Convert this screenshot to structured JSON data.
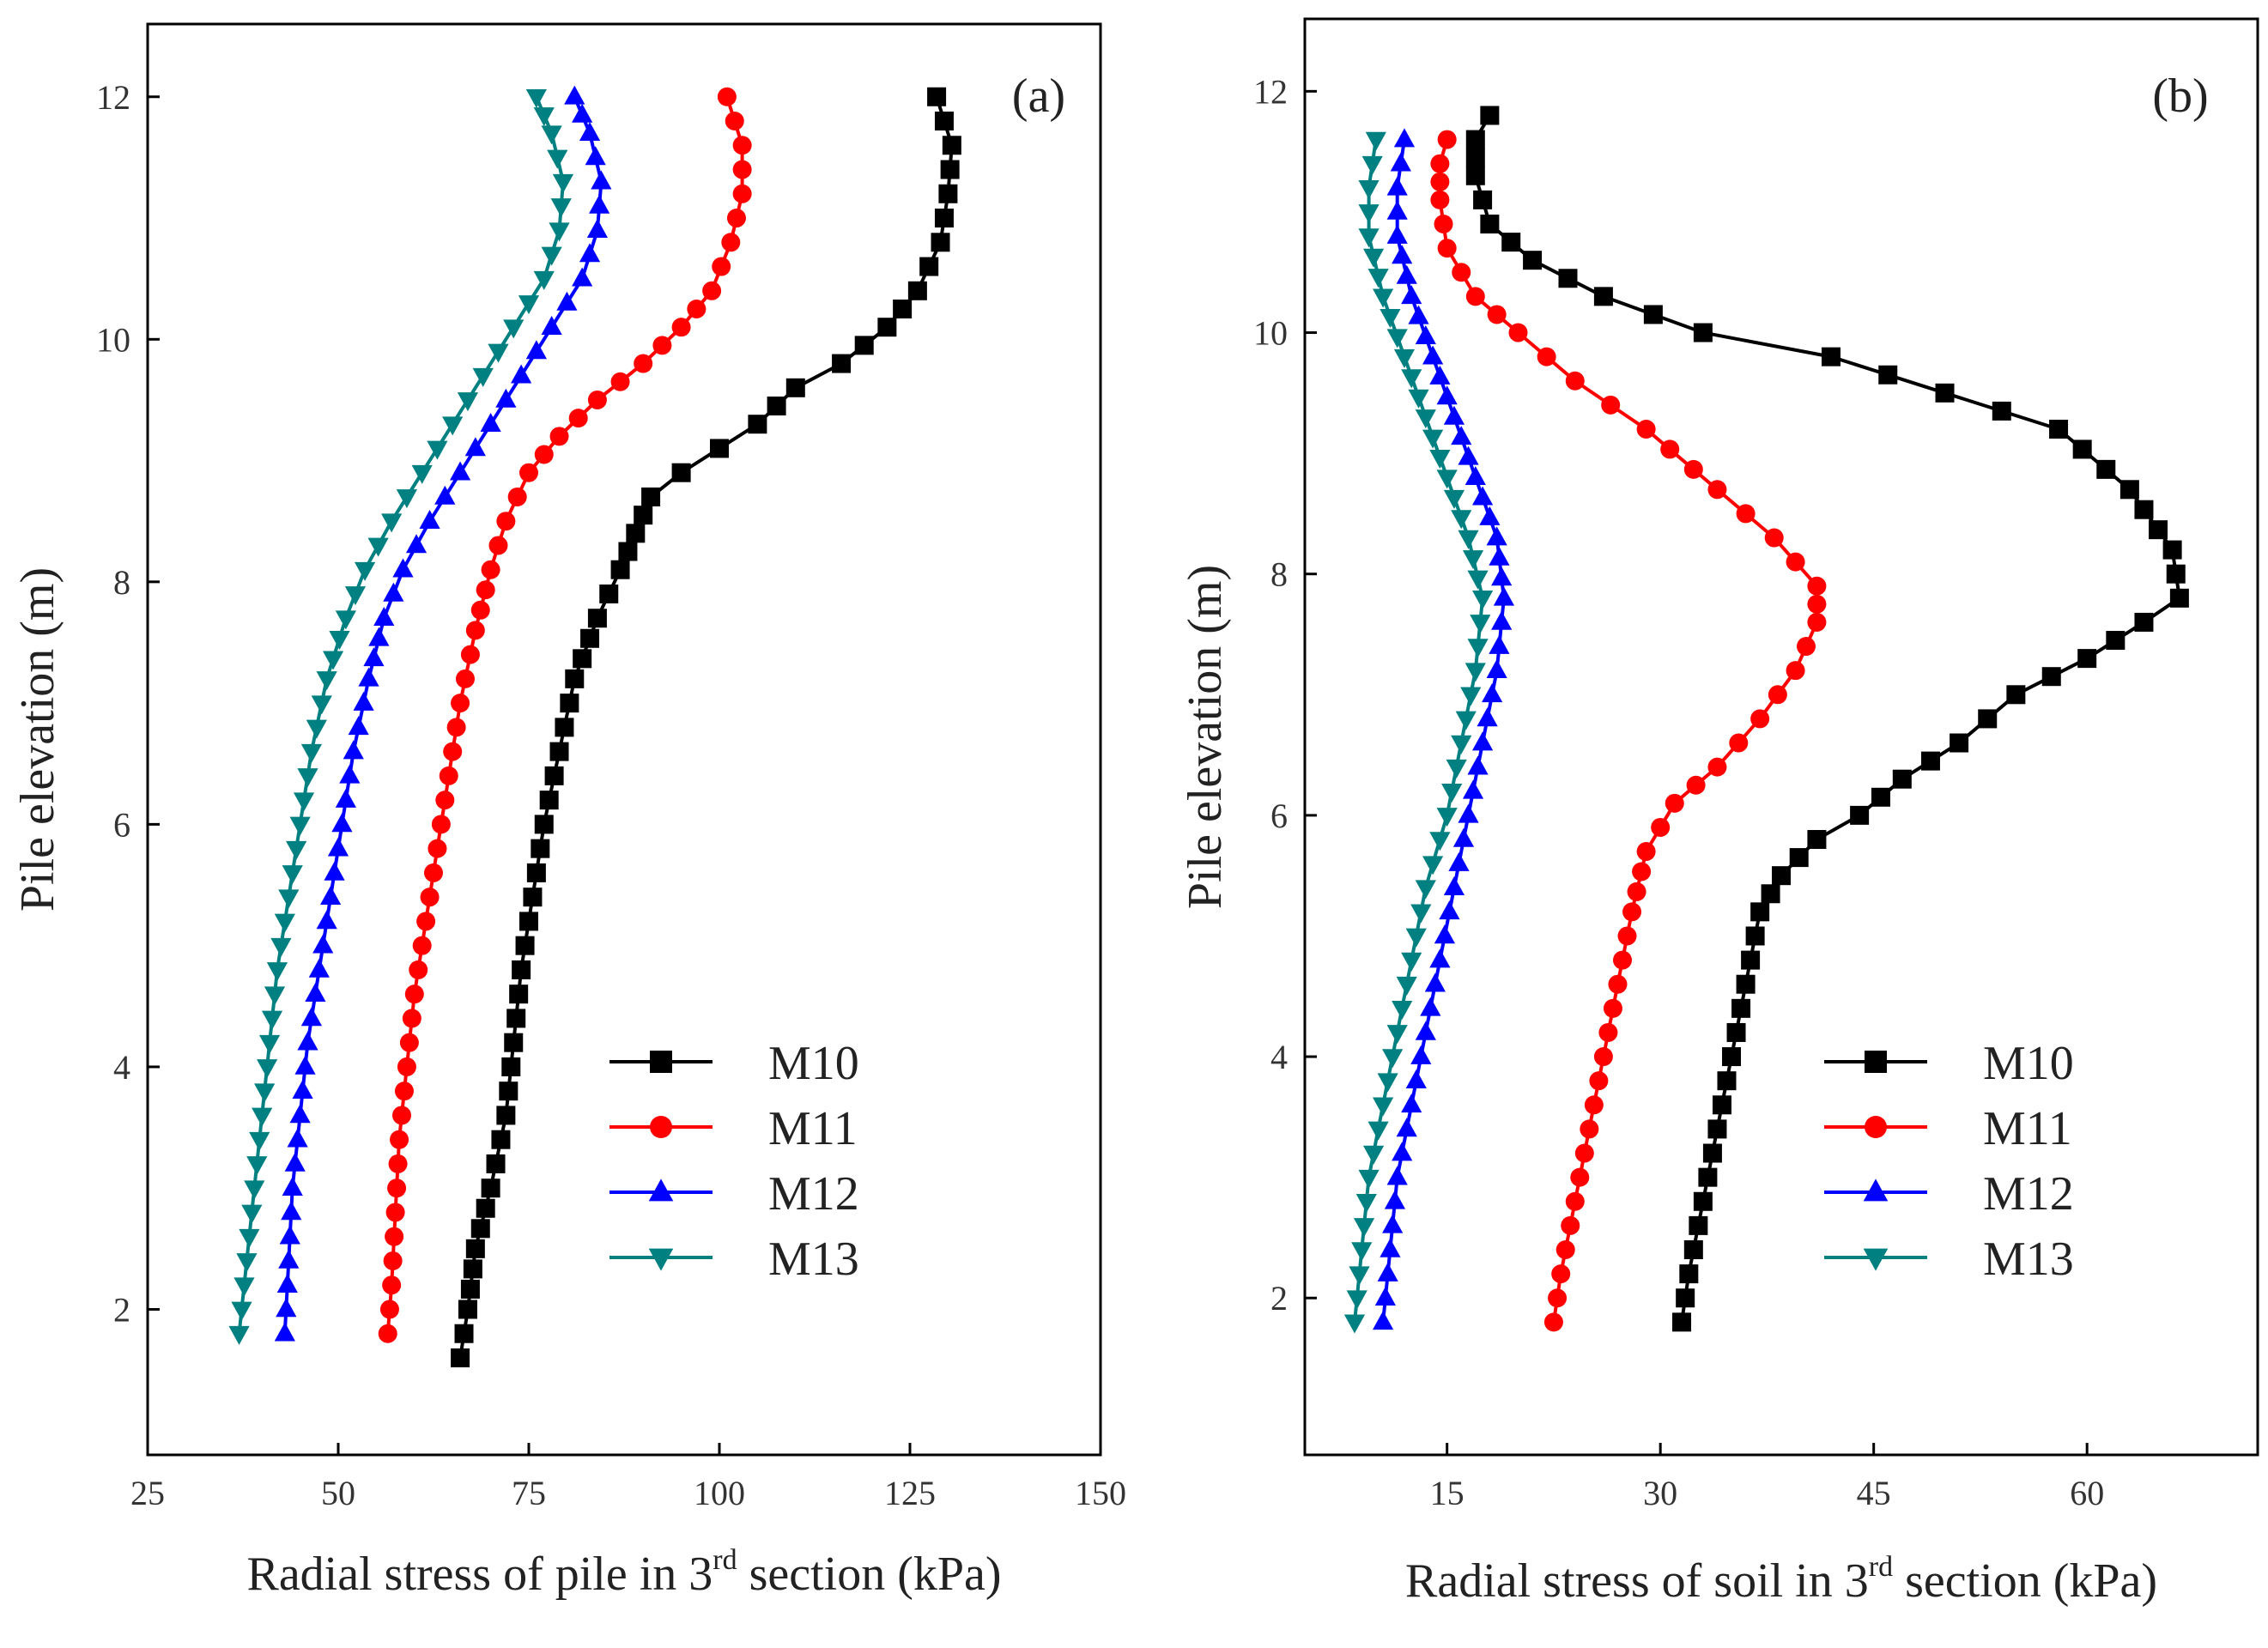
{
  "chart_data": [
    {
      "type": "line",
      "panel_label": "(a)",
      "xlabel_main": "Radial stress of pile in 3",
      "xlabel_sup": "rd",
      "xlabel_tail": " section (kPa)",
      "ylabel": "Pile elevation (m)",
      "xlim": [
        25,
        150
      ],
      "ylim": [
        0.8,
        12.6
      ],
      "xticks": [
        25,
        50,
        75,
        100,
        125,
        150
      ],
      "yticks": [
        2,
        4,
        6,
        8,
        10,
        12
      ],
      "legend_position": "bottom-right",
      "series": [
        {
          "name": "M10",
          "color": "#000000",
          "marker": "square",
          "points": [
            [
              66,
              1.6
            ],
            [
              67,
              2.0
            ],
            [
              68,
              2.5
            ],
            [
              70,
              3.0
            ],
            [
              72,
              3.6
            ],
            [
              73,
              4.2
            ],
            [
              74,
              4.8
            ],
            [
              75.5,
              5.4
            ],
            [
              77,
              6.0
            ],
            [
              79,
              6.6
            ],
            [
              81,
              7.2
            ],
            [
              84,
              7.7
            ],
            [
              87,
              8.1
            ],
            [
              89,
              8.4
            ],
            [
              91,
              8.7
            ],
            [
              95,
              8.9
            ],
            [
              100,
              9.1
            ],
            [
              105,
              9.3
            ],
            [
              110,
              9.6
            ],
            [
              116,
              9.8
            ],
            [
              122,
              10.1
            ],
            [
              126,
              10.4
            ],
            [
              129,
              10.8
            ],
            [
              130,
              11.2
            ],
            [
              130.5,
              11.6
            ],
            [
              128.5,
              12.0
            ]
          ]
        },
        {
          "name": "M11",
          "color": "#ff0000",
          "marker": "circle",
          "points": [
            [
              56.5,
              1.8
            ],
            [
              57,
              2.2
            ],
            [
              57.5,
              2.8
            ],
            [
              58,
              3.4
            ],
            [
              59,
              4.0
            ],
            [
              60,
              4.6
            ],
            [
              61.5,
              5.2
            ],
            [
              63,
              5.8
            ],
            [
              64.5,
              6.4
            ],
            [
              66,
              7.0
            ],
            [
              68,
              7.6
            ],
            [
              70,
              8.1
            ],
            [
              72,
              8.5
            ],
            [
              75,
              8.9
            ],
            [
              79,
              9.2
            ],
            [
              84,
              9.5
            ],
            [
              90,
              9.8
            ],
            [
              95,
              10.1
            ],
            [
              99,
              10.4
            ],
            [
              101.5,
              10.8
            ],
            [
              103,
              11.2
            ],
            [
              103,
              11.6
            ],
            [
              101,
              12.0
            ]
          ]
        },
        {
          "name": "M12",
          "color": "#0000ff",
          "marker": "triangle-up",
          "points": [
            [
              43,
              1.8
            ],
            [
              43.5,
              2.4
            ],
            [
              44,
              3.0
            ],
            [
              45,
              3.6
            ],
            [
              46,
              4.2
            ],
            [
              47.5,
              4.8
            ],
            [
              49,
              5.4
            ],
            [
              50.5,
              6.0
            ],
            [
              52,
              6.6
            ],
            [
              54,
              7.2
            ],
            [
              56,
              7.7
            ],
            [
              58.5,
              8.1
            ],
            [
              62,
              8.5
            ],
            [
              66,
              8.9
            ],
            [
              70,
              9.3
            ],
            [
              74,
              9.7
            ],
            [
              78,
              10.1
            ],
            [
              82,
              10.5
            ],
            [
              84,
              10.9
            ],
            [
              84.5,
              11.3
            ],
            [
              83,
              11.7
            ],
            [
              81,
              12.0
            ]
          ]
        },
        {
          "name": "M13",
          "color": "#008080",
          "marker": "triangle-down",
          "points": [
            [
              37,
              1.8
            ],
            [
              38,
              2.4
            ],
            [
              39,
              3.0
            ],
            [
              40,
              3.6
            ],
            [
              41,
              4.2
            ],
            [
              42,
              4.8
            ],
            [
              43.5,
              5.4
            ],
            [
              45,
              6.0
            ],
            [
              46.5,
              6.6
            ],
            [
              48.5,
              7.2
            ],
            [
              51,
              7.7
            ],
            [
              53.5,
              8.1
            ],
            [
              57,
              8.5
            ],
            [
              61,
              8.9
            ],
            [
              65,
              9.3
            ],
            [
              69,
              9.7
            ],
            [
              73,
              10.1
            ],
            [
              77,
              10.5
            ],
            [
              79,
              10.9
            ],
            [
              79.5,
              11.3
            ],
            [
              78,
              11.7
            ],
            [
              76,
              12.0
            ]
          ]
        }
      ]
    },
    {
      "type": "line",
      "panel_label": "(b)",
      "xlabel_main": "Radial stress of soil in 3",
      "xlabel_sup": "rd",
      "xlabel_tail": " section (kPa)",
      "ylabel": "Pile elevation (m)",
      "xlim": [
        5,
        72
      ],
      "ylim": [
        0.7,
        12.6
      ],
      "xticks": [
        15,
        30,
        45,
        60
      ],
      "yticks": [
        2,
        4,
        6,
        8,
        10,
        12
      ],
      "legend_position": "bottom-right",
      "series": [
        {
          "name": "M10",
          "color": "#000000",
          "marker": "square",
          "points": [
            [
              31.5,
              1.8
            ],
            [
              32,
              2.2
            ],
            [
              33,
              2.8
            ],
            [
              34,
              3.4
            ],
            [
              35,
              4.0
            ],
            [
              36,
              4.6
            ],
            [
              37,
              5.2
            ],
            [
              38.5,
              5.5
            ],
            [
              41,
              5.8
            ],
            [
              44,
              6.0
            ],
            [
              47,
              6.3
            ],
            [
              51,
              6.6
            ],
            [
              55,
              7.0
            ],
            [
              60,
              7.3
            ],
            [
              64,
              7.6
            ],
            [
              66.5,
              7.8
            ],
            [
              66,
              8.2
            ],
            [
              63,
              8.7
            ],
            [
              58,
              9.2
            ],
            [
              50,
              9.5
            ],
            [
              42,
              9.8
            ],
            [
              33,
              10.0
            ],
            [
              26,
              10.3
            ],
            [
              21,
              10.6
            ],
            [
              18,
              10.9
            ],
            [
              17,
              11.3
            ],
            [
              17,
              11.6
            ],
            [
              18,
              11.8
            ]
          ]
        },
        {
          "name": "M11",
          "color": "#ff0000",
          "marker": "circle",
          "points": [
            [
              22.5,
              1.8
            ],
            [
              23,
              2.2
            ],
            [
              24,
              2.8
            ],
            [
              25,
              3.4
            ],
            [
              26,
              4.0
            ],
            [
              27,
              4.6
            ],
            [
              28,
              5.2
            ],
            [
              29,
              5.7
            ],
            [
              31,
              6.1
            ],
            [
              34,
              6.4
            ],
            [
              37,
              6.8
            ],
            [
              39.5,
              7.2
            ],
            [
              41,
              7.6
            ],
            [
              41,
              7.9
            ],
            [
              38,
              8.3
            ],
            [
              34,
              8.7
            ],
            [
              29,
              9.2
            ],
            [
              24,
              9.6
            ],
            [
              20,
              10.0
            ],
            [
              17,
              10.3
            ],
            [
              15,
              10.7
            ],
            [
              14.5,
              11.1
            ],
            [
              14.5,
              11.4
            ],
            [
              15,
              11.6
            ]
          ]
        },
        {
          "name": "M12",
          "color": "#0000ff",
          "marker": "triangle-up",
          "points": [
            [
              10.5,
              1.8
            ],
            [
              11,
              2.4
            ],
            [
              11.5,
              3.0
            ],
            [
              12.5,
              3.6
            ],
            [
              13.5,
              4.2
            ],
            [
              14.5,
              4.8
            ],
            [
              15.5,
              5.4
            ],
            [
              16.5,
              6.0
            ],
            [
              17.5,
              6.6
            ],
            [
              18.5,
              7.2
            ],
            [
              19,
              7.8
            ],
            [
              18.5,
              8.3
            ],
            [
              17,
              8.8
            ],
            [
              15.5,
              9.3
            ],
            [
              14,
              9.8
            ],
            [
              12.5,
              10.3
            ],
            [
              11.5,
              10.8
            ],
            [
              11.5,
              11.2
            ],
            [
              12,
              11.6
            ]
          ]
        },
        {
          "name": "M13",
          "color": "#008080",
          "marker": "triangle-down",
          "points": [
            [
              8.5,
              1.8
            ],
            [
              9,
              2.4
            ],
            [
              9.5,
              3.0
            ],
            [
              10.5,
              3.6
            ],
            [
              11.5,
              4.2
            ],
            [
              12.5,
              4.8
            ],
            [
              13.5,
              5.4
            ],
            [
              15,
              6.0
            ],
            [
              16,
              6.6
            ],
            [
              17,
              7.2
            ],
            [
              17.5,
              7.8
            ],
            [
              16.5,
              8.3
            ],
            [
              15,
              8.8
            ],
            [
              13.5,
              9.3
            ],
            [
              12,
              9.8
            ],
            [
              10.5,
              10.3
            ],
            [
              9.5,
              10.8
            ],
            [
              9.5,
              11.2
            ],
            [
              10,
              11.6
            ]
          ]
        }
      ]
    }
  ]
}
